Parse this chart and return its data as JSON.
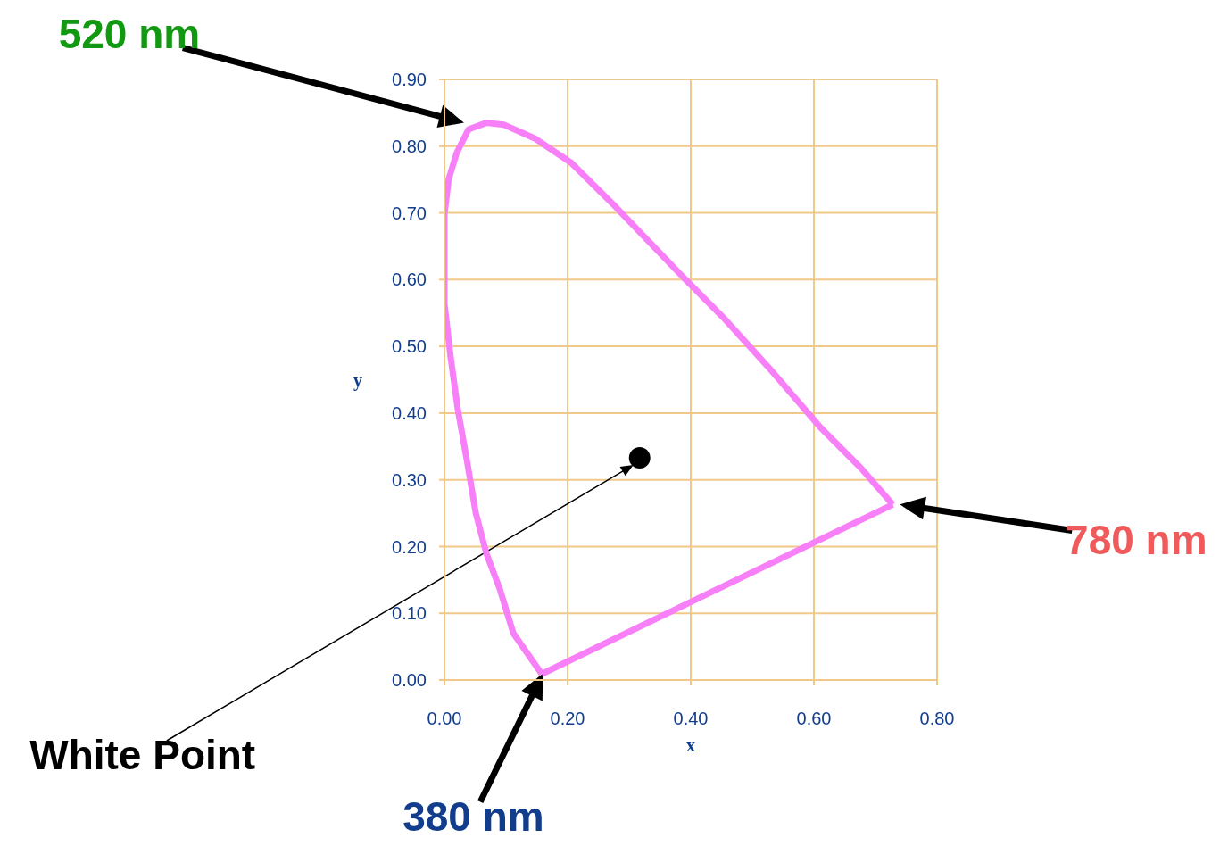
{
  "chart_data": {
    "type": "line",
    "xlabel": "x",
    "ylabel": "y",
    "xlim": [
      0,
      0.8
    ],
    "ylim": [
      0,
      0.9
    ],
    "xticks": [
      {
        "value": 0,
        "label": "0.00"
      },
      {
        "value": 0.2,
        "label": "0.20"
      },
      {
        "value": 0.4,
        "label": "0.40"
      },
      {
        "value": 0.6,
        "label": "0.60"
      },
      {
        "value": 0.8,
        "label": "0.80"
      }
    ],
    "yticks": [
      {
        "value": 0,
        "label": "0.00"
      },
      {
        "value": 0.1,
        "label": "0.10"
      },
      {
        "value": 0.2,
        "label": "0.20"
      },
      {
        "value": 0.3,
        "label": "0.30"
      },
      {
        "value": 0.4,
        "label": "0.40"
      },
      {
        "value": 0.5,
        "label": "0.50"
      },
      {
        "value": 0.6,
        "label": "0.60"
      },
      {
        "value": 0.7,
        "label": "0.70"
      },
      {
        "value": 0.8,
        "label": "0.80"
      },
      {
        "value": 0.9,
        "label": "0.90"
      }
    ],
    "grid": true,
    "legend": false,
    "series": [
      {
        "type": "line",
        "color": "#f77ff7",
        "marker": "none",
        "x": [
          0.158,
          0.112,
          0.09,
          0.068,
          0.051,
          0.035,
          0.022,
          0.01,
          0,
          0,
          0.007,
          0.02,
          0.039,
          0.068,
          0.097,
          0.148,
          0.206,
          0.278,
          0.38,
          0.452,
          0.525,
          0.612,
          0.677,
          0.728
        ],
        "values": [
          0.009,
          0.07,
          0.136,
          0.19,
          0.25,
          0.337,
          0.404,
          0.484,
          0.564,
          0.698,
          0.751,
          0.79,
          0.825,
          0.835,
          0.832,
          0.811,
          0.775,
          0.709,
          0.611,
          0.544,
          0.47,
          0.377,
          0.317,
          0.263
        ]
      },
      {
        "color": "#f77ff7",
        "marker": "none",
        "x": [
          0.158,
          0.728
        ],
        "values": [
          0.009,
          0.263
        ]
      },
      {
        "type": "scatter",
        "color": "#000000",
        "marker": "circle",
        "x": [
          0.317
        ],
        "values": [
          0.333
        ]
      }
    ],
    "annotations": [
      "520 nm",
      "780 nm",
      {
        "text": "380 nm",
        "x": 0.16,
        "y": 0.01
      },
      "White Point"
    ]
  }
}
